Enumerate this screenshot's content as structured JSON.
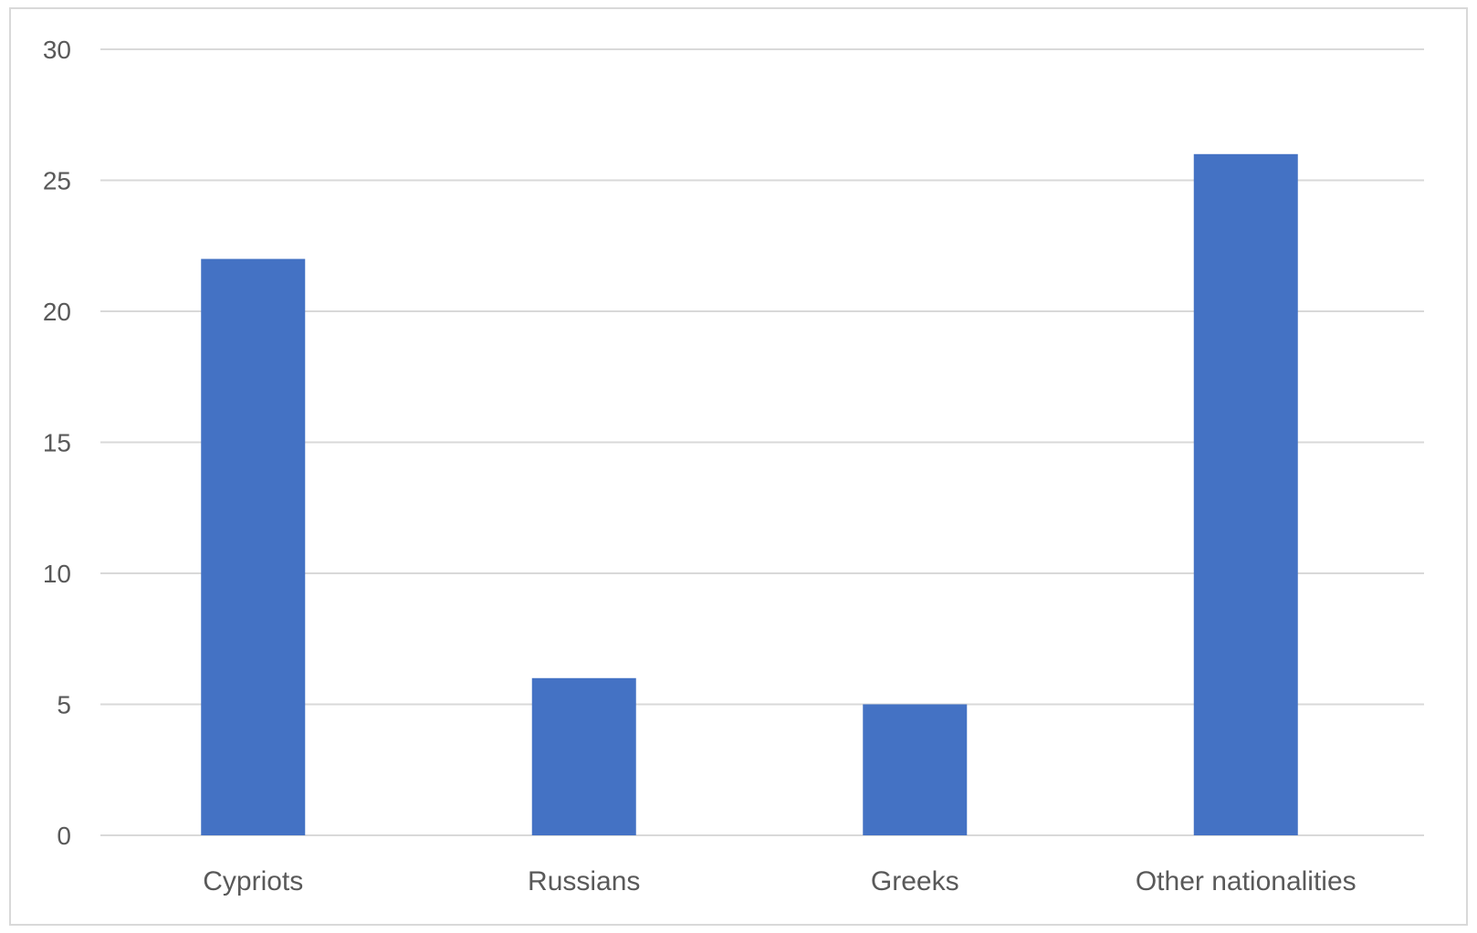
{
  "chart_data": {
    "type": "bar",
    "categories": [
      "Cypriots",
      "Russians",
      "Greeks",
      "Other nationalities"
    ],
    "values": [
      22,
      6,
      5,
      26
    ],
    "title": "",
    "xlabel": "",
    "ylabel": "",
    "ylim": [
      0,
      30
    ],
    "yticks": [
      "0",
      "5",
      "10",
      "15",
      "20",
      "25",
      "30"
    ],
    "grid": true,
    "legend": "none",
    "bar_color": "#4472C4",
    "grid_color": "#d9d9d9",
    "text_color": "#595959"
  }
}
